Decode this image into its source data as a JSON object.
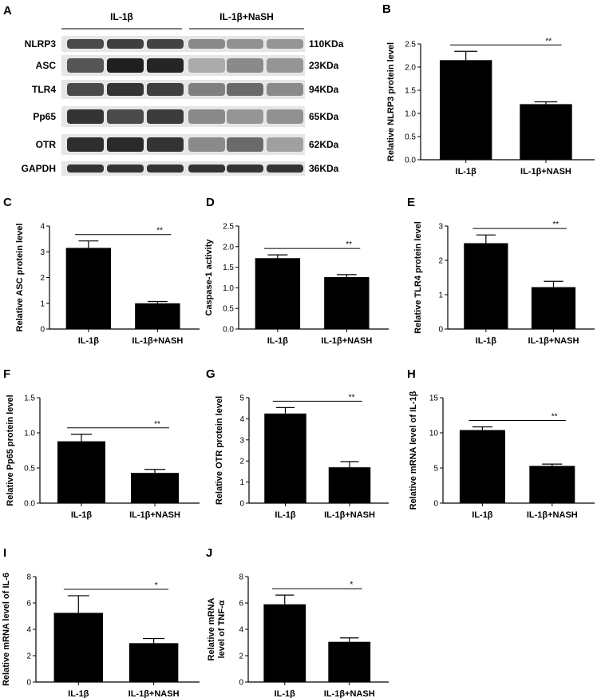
{
  "western_blot": {
    "panel_label": "A",
    "groups": [
      "IL-1β",
      "IL-1β+NaSH"
    ],
    "rows": [
      {
        "protein": "NLRP3",
        "size": "110KDa",
        "intensities": [
          0.75,
          0.8,
          0.78,
          0.45,
          0.42,
          0.4
        ]
      },
      {
        "protein": "ASC",
        "size": "23KDa",
        "intensities": [
          0.7,
          0.95,
          0.92,
          0.3,
          0.45,
          0.4
        ]
      },
      {
        "protein": "TLR4",
        "size": "94KDa",
        "intensities": [
          0.75,
          0.85,
          0.8,
          0.5,
          0.6,
          0.45
        ]
      },
      {
        "protein": "Pp65",
        "size": "65KDa",
        "intensities": [
          0.85,
          0.75,
          0.82,
          0.45,
          0.4,
          0.42
        ]
      },
      {
        "protein": "OTR",
        "size": "62KDa",
        "intensities": [
          0.88,
          0.9,
          0.85,
          0.45,
          0.6,
          0.35
        ]
      },
      {
        "protein": "GAPDH",
        "size": "36KDa",
        "intensities": [
          0.85,
          0.85,
          0.85,
          0.85,
          0.85,
          0.85
        ]
      }
    ]
  },
  "chart_data": [
    {
      "panel": "B",
      "type": "bar",
      "categories": [
        "IL-1β",
        "IL-1β+NASH"
      ],
      "values": [
        2.15,
        1.2
      ],
      "errors": [
        0.19,
        0.05
      ],
      "ylabel": "Relative NLRP3 protein level",
      "ylim": [
        0,
        2.5
      ],
      "yticks": [
        "0.0",
        "0.5",
        "1.0",
        "1.5",
        "2.0",
        "2.5"
      ],
      "significance": "**"
    },
    {
      "panel": "C",
      "type": "bar",
      "categories": [
        "IL-1β",
        "IL-1β+NASH"
      ],
      "values": [
        3.15,
        1.0
      ],
      "errors": [
        0.27,
        0.07
      ],
      "ylabel": "Relative ASC protein level",
      "ylim": [
        0,
        4
      ],
      "yticks": [
        "0",
        "1",
        "2",
        "3",
        "4"
      ],
      "significance": "**"
    },
    {
      "panel": "D",
      "type": "bar",
      "categories": [
        "IL-1β",
        "IL-1β+NASH"
      ],
      "values": [
        1.72,
        1.26
      ],
      "errors": [
        0.08,
        0.06
      ],
      "ylabel": "Caspase-1 activity",
      "ylim": [
        0,
        2.5
      ],
      "yticks": [
        "0.0",
        "0.5",
        "1.0",
        "1.5",
        "2.0",
        "2.5"
      ],
      "significance": "**"
    },
    {
      "panel": "E",
      "type": "bar",
      "categories": [
        "IL-1β",
        "IL-1β+NASH"
      ],
      "values": [
        2.5,
        1.22
      ],
      "errors": [
        0.24,
        0.17
      ],
      "ylabel": "Relative TLR4 protein level",
      "ylim": [
        0,
        3
      ],
      "yticks": [
        "0",
        "1",
        "2",
        "3"
      ],
      "significance": "**"
    },
    {
      "panel": "F",
      "type": "bar",
      "categories": [
        "IL-1β",
        "IL-1β+NASH"
      ],
      "values": [
        0.88,
        0.43
      ],
      "errors": [
        0.1,
        0.05
      ],
      "ylabel": "Relative Pp65 protein level",
      "ylim": [
        0,
        1.5
      ],
      "yticks": [
        "0.0",
        "0.5",
        "1.0",
        "1.5"
      ],
      "significance": "**"
    },
    {
      "panel": "G",
      "type": "bar",
      "categories": [
        "IL-1β",
        "IL-1β+NASH"
      ],
      "values": [
        4.25,
        1.7
      ],
      "errors": [
        0.28,
        0.27
      ],
      "ylabel": "Relative OTR protein level",
      "ylim": [
        0,
        5
      ],
      "yticks": [
        "0",
        "1",
        "2",
        "3",
        "4",
        "5"
      ],
      "significance": "**"
    },
    {
      "panel": "H",
      "type": "bar",
      "categories": [
        "IL-1β",
        "IL-1β+NASH"
      ],
      "values": [
        10.4,
        5.3
      ],
      "errors": [
        0.45,
        0.25
      ],
      "ylabel": "Relative mRNA level of IL-1β",
      "ylim": [
        0,
        15
      ],
      "yticks": [
        "0",
        "5",
        "10",
        "15"
      ],
      "significance": "**"
    },
    {
      "panel": "I",
      "type": "bar",
      "categories": [
        "IL-1β",
        "IL-1β+NASH"
      ],
      "values": [
        5.25,
        2.95
      ],
      "errors": [
        1.3,
        0.35
      ],
      "ylabel": "Relative mRNA level of IL-6",
      "ylim": [
        0,
        8
      ],
      "yticks": [
        "0",
        "2",
        "4",
        "6",
        "8"
      ],
      "significance": "*"
    },
    {
      "panel": "J",
      "type": "bar",
      "categories": [
        "IL-1β",
        "IL-1β+NASH"
      ],
      "values": [
        5.9,
        3.05
      ],
      "errors": [
        0.7,
        0.3
      ],
      "ylabel": "Relative mRNA level of TNF-α",
      "ylabel_lines": [
        "Relative mRNA",
        "level of TNF-α"
      ],
      "ylim": [
        0,
        8
      ],
      "yticks": [
        "0",
        "2",
        "4",
        "6",
        "8"
      ],
      "significance": "*"
    }
  ]
}
